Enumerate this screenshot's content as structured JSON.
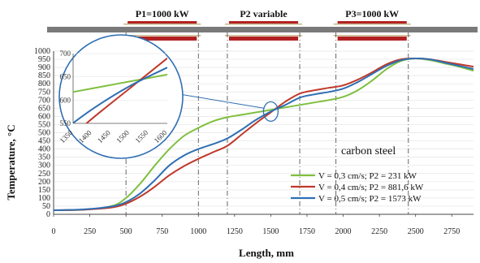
{
  "chart_data": {
    "type": "line",
    "xlabel": "Length, mm",
    "ylabel": "Temperature, °C",
    "xlim": [
      0,
      2900
    ],
    "ylim": [
      0,
      1000
    ],
    "x_ticks": [
      "0",
      "250",
      "500",
      "750",
      "1000",
      "1250",
      "1500",
      "1750",
      "2000",
      "2250",
      "2500",
      "2750"
    ],
    "y_ticks": [
      "0",
      "50",
      "100",
      "150",
      "200",
      "250",
      "300",
      "350",
      "400",
      "450",
      "500",
      "550",
      "600",
      "650",
      "700",
      "750",
      "800",
      "850",
      "900",
      "950",
      "1000"
    ],
    "heater_bands": [
      {
        "label": "P1=1000 kW",
        "start": 500,
        "end": 1000
      },
      {
        "label": "P2 variable",
        "start": 1200,
        "end": 1700
      },
      {
        "label": "P3=1000 kW",
        "start": 1950,
        "end": 2450
      }
    ],
    "annotation": "carbon steel",
    "series": [
      {
        "name": "V = 0,3 cm/s; P2 = 231 kW",
        "color": "#7fbf3f",
        "x": [
          0,
          200,
          400,
          500,
          600,
          700,
          800,
          900,
          1000,
          1100,
          1200,
          1300,
          1400,
          1500,
          1600,
          1700,
          1800,
          1900,
          2000,
          2100,
          2200,
          2300,
          2400,
          2500,
          2600,
          2700,
          2800,
          2900
        ],
        "y": [
          25,
          28,
          50,
          100,
          190,
          300,
          400,
          480,
          530,
          570,
          595,
          610,
          625,
          640,
          655,
          670,
          685,
          700,
          720,
          760,
          820,
          890,
          940,
          955,
          945,
          925,
          905,
          880
        ]
      },
      {
        "name": "V = 0,4 cm/s; P2 = 881,6 kW",
        "color": "#c0392b",
        "x": [
          0,
          200,
          400,
          500,
          600,
          700,
          800,
          900,
          1000,
          1100,
          1200,
          1300,
          1400,
          1500,
          1600,
          1700,
          1800,
          1900,
          2000,
          2100,
          2200,
          2300,
          2400,
          2500,
          2600,
          2700,
          2800,
          2900
        ],
        "y": [
          25,
          28,
          42,
          65,
          110,
          170,
          240,
          295,
          340,
          380,
          420,
          490,
          560,
          625,
          690,
          740,
          760,
          775,
          790,
          825,
          870,
          920,
          950,
          955,
          950,
          935,
          920,
          905
        ]
      },
      {
        "name": "V = 0,5 cm/s; P2 = 1573 kW",
        "color": "#2f6fb3",
        "x": [
          0,
          200,
          400,
          500,
          600,
          700,
          800,
          900,
          1000,
          1100,
          1200,
          1300,
          1400,
          1500,
          1600,
          1700,
          1800,
          1900,
          2000,
          2100,
          2200,
          2300,
          2400,
          2500,
          2600,
          2700,
          2800,
          2900
        ],
        "y": [
          25,
          30,
          48,
          75,
          130,
          210,
          300,
          360,
          400,
          430,
          465,
          520,
          580,
          630,
          670,
          715,
          735,
          750,
          770,
          810,
          860,
          910,
          945,
          955,
          950,
          930,
          910,
          890
        ]
      }
    ],
    "inset": {
      "xlim": [
        1350,
        1600
      ],
      "ylim": [
        550,
        700
      ],
      "x_ticks": [
        "1350",
        "1400",
        "1450",
        "1500",
        "1550",
        "1600"
      ],
      "y_ticks": [
        "550",
        "600",
        "650",
        "700"
      ]
    }
  }
}
